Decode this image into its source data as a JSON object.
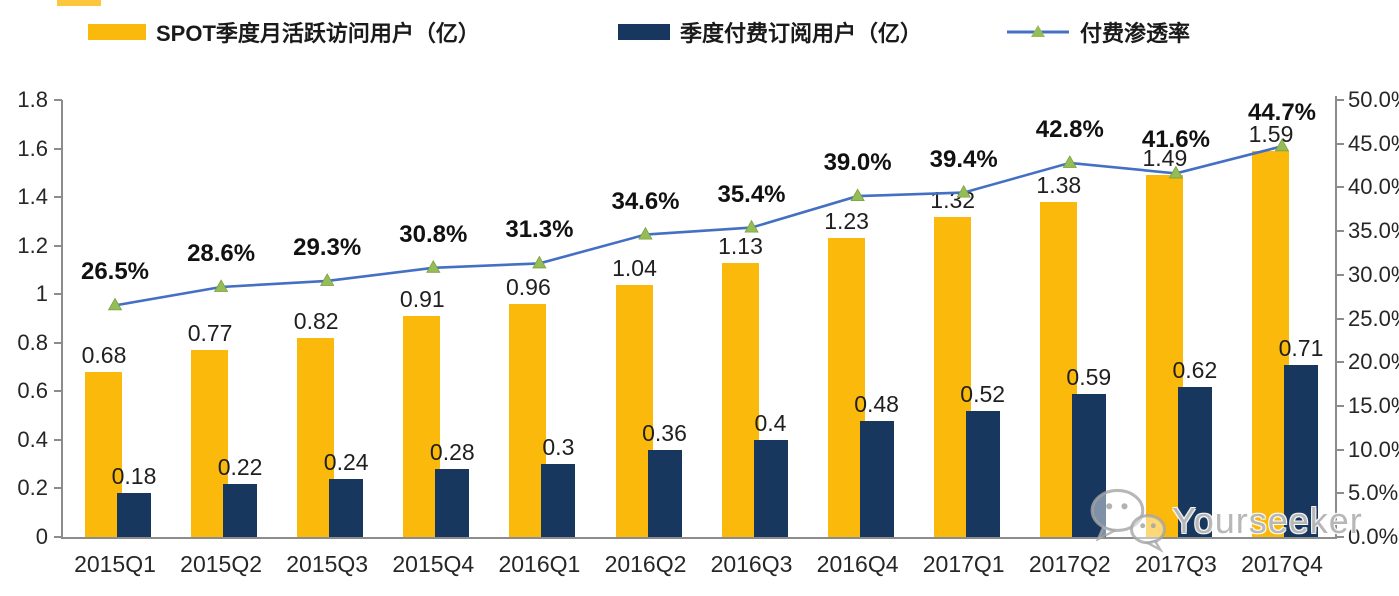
{
  "legend": [
    {
      "label": "SPOT季度月活跃访问用户（亿）",
      "type": "bar",
      "color": "#FBB90B"
    },
    {
      "label": "季度付费订阅用户（亿）",
      "type": "bar",
      "color": "#17375E"
    },
    {
      "label": "付费渗透率",
      "type": "line",
      "color": "#4470C4",
      "marker_color": "#95BD57"
    }
  ],
  "watermark": {
    "text": "Yourseeker",
    "icon": "wechat-icon"
  },
  "chart_data": {
    "type": "bar",
    "subtype": "combo-bar-line",
    "categories": [
      "2015Q1",
      "2015Q2",
      "2015Q3",
      "2015Q4",
      "2016Q1",
      "2016Q2",
      "2016Q3",
      "2016Q4",
      "2017Q1",
      "2017Q2",
      "2017Q3",
      "2017Q4"
    ],
    "series": [
      {
        "name": "SPOT季度月活跃访问用户（亿）",
        "type": "bar",
        "axis": "left",
        "color": "#FBB90B",
        "values": [
          0.68,
          0.77,
          0.82,
          0.91,
          0.96,
          1.04,
          1.13,
          1.23,
          1.32,
          1.38,
          1.49,
          1.59
        ],
        "labels": [
          "0.68",
          "0.77",
          "0.82",
          "0.91",
          "0.96",
          "1.04",
          "1.13",
          "1.23",
          "1.32",
          "1.38",
          "1.49",
          "1.59"
        ]
      },
      {
        "name": "季度付费订阅用户（亿）",
        "type": "bar",
        "axis": "left",
        "color": "#17375E",
        "values": [
          0.18,
          0.22,
          0.24,
          0.28,
          0.3,
          0.36,
          0.4,
          0.48,
          0.52,
          0.59,
          0.62,
          0.71
        ],
        "labels": [
          "0.18",
          "0.22",
          "0.24",
          "0.28",
          "0.3",
          "0.36",
          "0.4",
          "0.48",
          "0.52",
          "0.59",
          "0.62",
          "0.71"
        ]
      },
      {
        "name": "付费渗透率",
        "type": "line",
        "axis": "right",
        "color": "#4470C4",
        "marker": "triangle",
        "marker_color": "#95BD57",
        "values": [
          26.5,
          28.6,
          29.3,
          30.8,
          31.3,
          34.6,
          35.4,
          39.0,
          39.4,
          42.8,
          41.6,
          44.7
        ],
        "labels": [
          "26.5%",
          "28.6%",
          "29.3%",
          "30.8%",
          "31.3%",
          "34.6%",
          "35.4%",
          "39.0%",
          "39.4%",
          "42.8%",
          "41.6%",
          "44.7%"
        ]
      }
    ],
    "left_axis": {
      "min": 0,
      "max": 1.8,
      "step": 0.2,
      "ticks": [
        "0",
        "0.2",
        "0.4",
        "0.6",
        "0.8",
        "1",
        "1.2",
        "1.4",
        "1.6",
        "1.8"
      ]
    },
    "right_axis": {
      "min": 0,
      "max": 50,
      "step": 5,
      "ticks": [
        "0.0%",
        "5.0%",
        "10.0%",
        "15.0%",
        "20.0%",
        "25.0%",
        "30.0%",
        "35.0%",
        "40.0%",
        "45.0%",
        "50.0%"
      ]
    },
    "grid": false,
    "legend_position": "top",
    "title": "",
    "xlabel": "",
    "ylabel": ""
  }
}
